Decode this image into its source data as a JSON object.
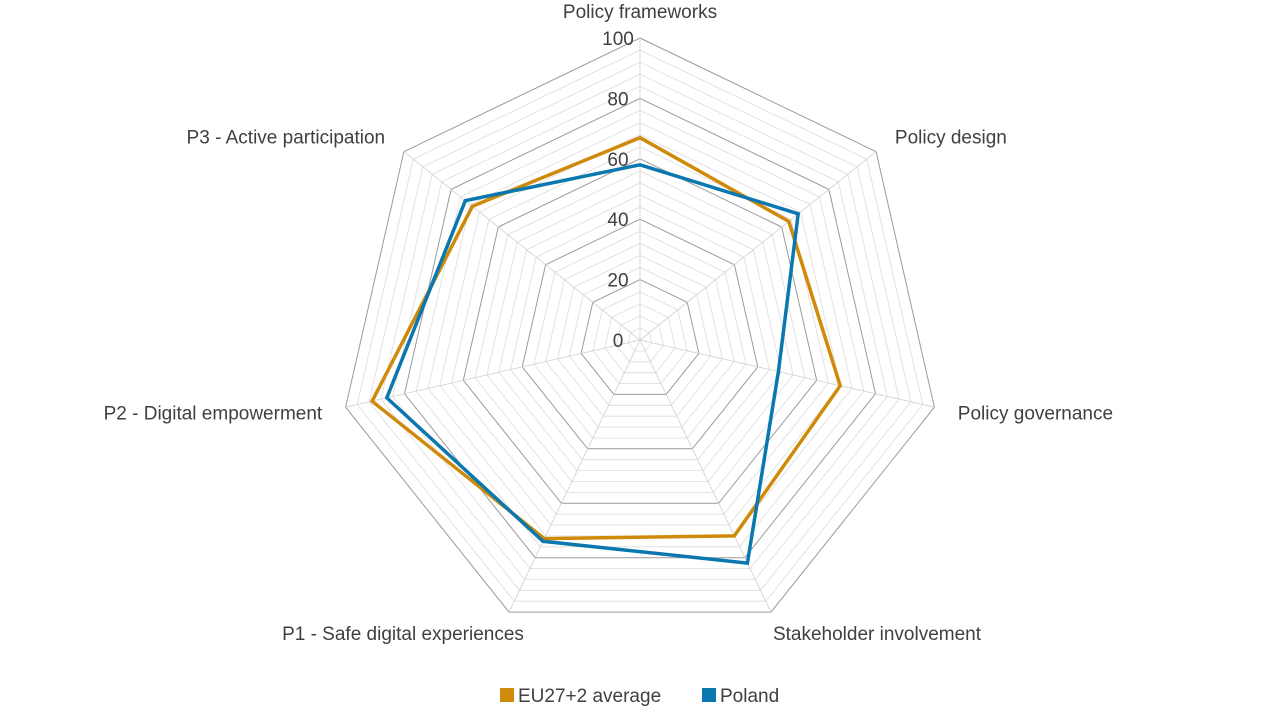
{
  "chart_data": {
    "type": "radar",
    "title": "",
    "axes": [
      "Policy frameworks",
      "Policy design",
      "Policy governance",
      "Stakeholder involvement",
      "P1 - Safe digital experiences",
      "P2 - Digital empowerment",
      "P3 - Active participation"
    ],
    "ticks": [
      "0",
      "20",
      "40",
      "60",
      "80",
      "100"
    ],
    "rlim": [
      0,
      100
    ],
    "minor_step": 4,
    "series": [
      {
        "name": "EU27+2 average",
        "color": "#D08A0A",
        "values": [
          67,
          63,
          68,
          72,
          73,
          91,
          71
        ]
      },
      {
        "name": "Poland",
        "color": "#0A78AE",
        "values": [
          58,
          67,
          47,
          82,
          74,
          86,
          74
        ]
      }
    ],
    "legend_position": "bottom"
  }
}
